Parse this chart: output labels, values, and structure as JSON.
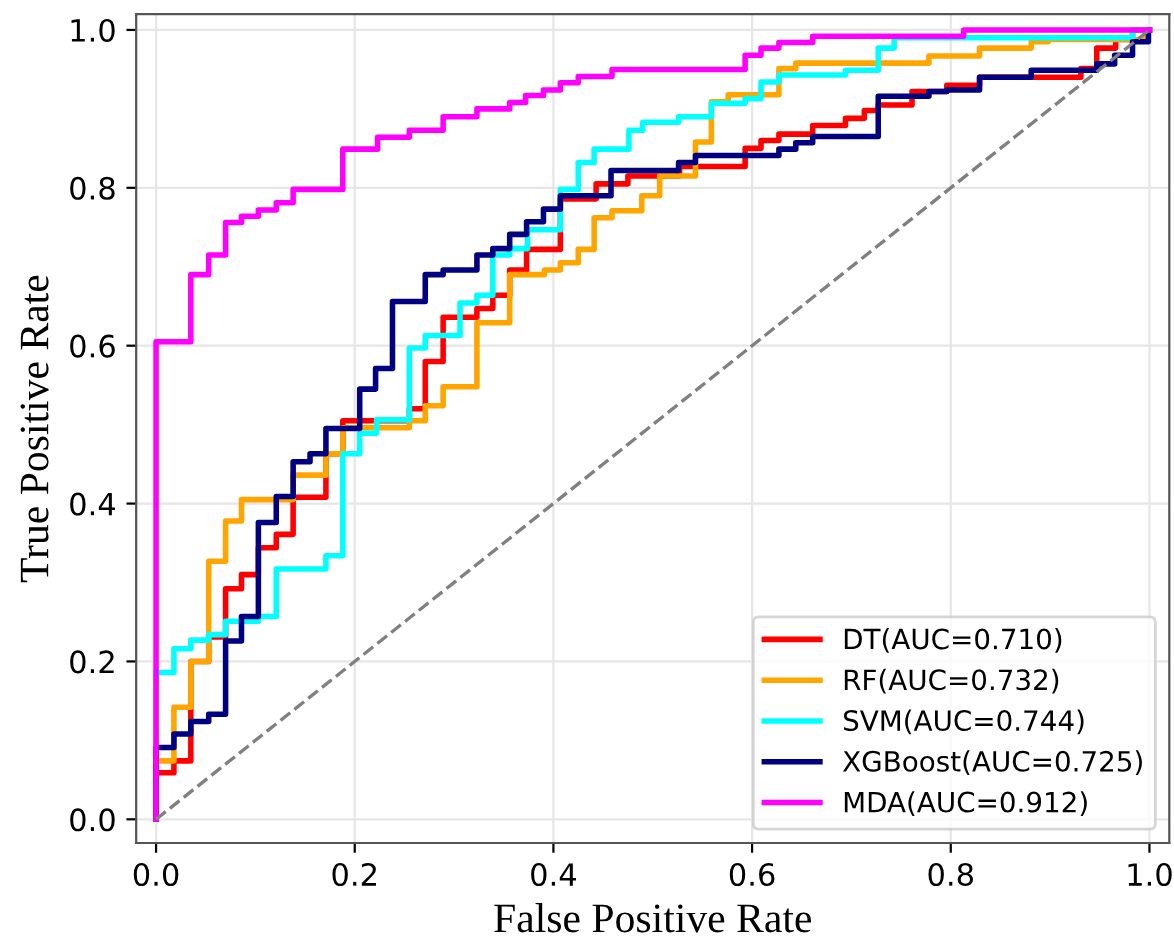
{
  "chart_data": {
    "type": "step",
    "xlabel": "False Positive Rate",
    "ylabel": "True Positive Rate",
    "xlim": [
      -0.02,
      1.02
    ],
    "ylim": [
      -0.03,
      1.02
    ],
    "xticks": [
      {
        "value": 0,
        "label": "0.0"
      },
      {
        "value": 0.2,
        "label": "0.2"
      },
      {
        "value": 0.4,
        "label": "0.4"
      },
      {
        "value": 0.6,
        "label": "0.6"
      },
      {
        "value": 0.8,
        "label": "0.8"
      },
      {
        "value": 1,
        "label": "1.0"
      }
    ],
    "yticks": [
      {
        "value": 0,
        "label": "0.0"
      },
      {
        "value": 0.2,
        "label": "0.2"
      },
      {
        "value": 0.4,
        "label": "0.4"
      },
      {
        "value": 0.6,
        "label": "0.6"
      },
      {
        "value": 0.8,
        "label": "0.8"
      },
      {
        "value": 1,
        "label": "1.0"
      }
    ],
    "grid": true,
    "legend": "bottom right",
    "series": [
      {
        "name": "DT(AUC=0.710)",
        "color": "#ff0000",
        "x": [
          0,
          0,
          0.018,
          0.035,
          0.053,
          0.07,
          0.086,
          0.103,
          0.121,
          0.138,
          0.171,
          0.188,
          0.255,
          0.271,
          0.289,
          0.323,
          0.339,
          0.356,
          0.373,
          0.407,
          0.443,
          0.475,
          0.527,
          0.593,
          0.609,
          0.627,
          0.661,
          0.694,
          0.713,
          0.727,
          0.761,
          0.796,
          0.829,
          0.931,
          0.947,
          0.966,
          0.983,
          1.0
        ],
        "values": [
          0,
          0.059,
          0.074,
          0.2,
          0.231,
          0.292,
          0.31,
          0.344,
          0.361,
          0.408,
          0.463,
          0.505,
          0.52,
          0.58,
          0.636,
          0.647,
          0.664,
          0.696,
          0.722,
          0.786,
          0.805,
          0.815,
          0.827,
          0.85,
          0.86,
          0.868,
          0.879,
          0.888,
          0.898,
          0.905,
          0.922,
          0.93,
          0.94,
          0.951,
          0.977,
          0.988,
          1.0,
          1.0
        ]
      },
      {
        "name": "RF(AUC=0.732)",
        "color": "#ffa500",
        "x": [
          0,
          0,
          0.018,
          0.035,
          0.053,
          0.07,
          0.086,
          0.138,
          0.171,
          0.188,
          0.255,
          0.271,
          0.289,
          0.323,
          0.356,
          0.391,
          0.407,
          0.425,
          0.441,
          0.459,
          0.489,
          0.507,
          0.543,
          0.559,
          0.576,
          0.627,
          0.644,
          0.778,
          0.829,
          0.881,
          0.898,
          0.996,
          1.0
        ],
        "values": [
          0,
          0.074,
          0.142,
          0.2,
          0.327,
          0.378,
          0.405,
          0.436,
          0.463,
          0.496,
          0.505,
          0.524,
          0.548,
          0.629,
          0.69,
          0.696,
          0.705,
          0.722,
          0.762,
          0.771,
          0.79,
          0.815,
          0.858,
          0.909,
          0.918,
          0.951,
          0.958,
          0.967,
          0.977,
          0.985,
          0.988,
          1.0,
          1.0
        ]
      },
      {
        "name": "SVM(AUC=0.744)",
        "color": "#00ffff",
        "x": [
          0,
          0,
          0.018,
          0.035,
          0.053,
          0.07,
          0.103,
          0.121,
          0.171,
          0.188,
          0.205,
          0.222,
          0.255,
          0.271,
          0.306,
          0.323,
          0.339,
          0.356,
          0.374,
          0.407,
          0.425,
          0.441,
          0.476,
          0.49,
          0.526,
          0.559,
          0.593,
          0.609,
          0.627,
          0.694,
          0.727,
          0.743,
          0.983,
          1.0
        ],
        "values": [
          0,
          0.186,
          0.216,
          0.227,
          0.234,
          0.251,
          0.257,
          0.317,
          0.334,
          0.463,
          0.489,
          0.506,
          0.597,
          0.613,
          0.654,
          0.664,
          0.715,
          0.723,
          0.747,
          0.798,
          0.832,
          0.849,
          0.873,
          0.883,
          0.89,
          0.907,
          0.913,
          0.934,
          0.943,
          0.949,
          0.977,
          0.99,
          1.0,
          1.0
        ]
      },
      {
        "name": "XGBoost(AUC=0.725)",
        "color": "#000080",
        "x": [
          0,
          0,
          0.018,
          0.035,
          0.053,
          0.07,
          0.086,
          0.103,
          0.121,
          0.138,
          0.155,
          0.171,
          0.205,
          0.221,
          0.238,
          0.271,
          0.289,
          0.323,
          0.339,
          0.356,
          0.373,
          0.39,
          0.407,
          0.458,
          0.526,
          0.543,
          0.627,
          0.644,
          0.661,
          0.727,
          0.778,
          0.796,
          0.829,
          0.881,
          0.947,
          0.965,
          0.983,
          0.999,
          1.0
        ],
        "values": [
          0,
          0.091,
          0.108,
          0.124,
          0.133,
          0.226,
          0.257,
          0.376,
          0.409,
          0.453,
          0.463,
          0.495,
          0.545,
          0.571,
          0.656,
          0.69,
          0.696,
          0.715,
          0.723,
          0.741,
          0.757,
          0.773,
          0.79,
          0.822,
          0.832,
          0.841,
          0.849,
          0.857,
          0.865,
          0.916,
          0.922,
          0.924,
          0.94,
          0.949,
          0.957,
          0.968,
          0.985,
          1.0,
          1.0
        ]
      },
      {
        "name": "MDA(AUC=0.912)",
        "color": "#ff00ff",
        "x": [
          0,
          0,
          0.035,
          0.053,
          0.07,
          0.086,
          0.103,
          0.121,
          0.138,
          0.188,
          0.223,
          0.255,
          0.289,
          0.323,
          0.356,
          0.372,
          0.39,
          0.407,
          0.425,
          0.459,
          0.593,
          0.609,
          0.627,
          0.661,
          0.813,
          1.0
        ],
        "values": [
          0,
          0.605,
          0.69,
          0.715,
          0.756,
          0.764,
          0.772,
          0.781,
          0.798,
          0.849,
          0.864,
          0.873,
          0.89,
          0.9,
          0.908,
          0.917,
          0.924,
          0.933,
          0.941,
          0.95,
          0.968,
          0.977,
          0.984,
          0.992,
          1.0,
          1.0
        ]
      },
      {
        "type": "line",
        "color": "#808080",
        "line_style": "dashed",
        "x": [
          0,
          1
        ],
        "values": [
          0,
          1
        ]
      }
    ]
  }
}
